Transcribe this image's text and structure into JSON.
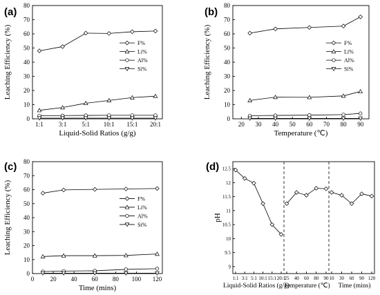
{
  "chart_data": [
    {
      "id": "a",
      "type": "line",
      "panel_label": "(a)",
      "xlabel": "Liquid-Solid Ratios (g/g)",
      "ylabel": "Leaching Efficiency (%)",
      "categories": [
        "1:1",
        "3:1",
        "5:1",
        "10:1",
        "15:1",
        "20:1"
      ],
      "ylim": [
        0,
        80
      ],
      "yticks": [
        0,
        10,
        20,
        30,
        40,
        50,
        60,
        70,
        80
      ],
      "legend_position": "right",
      "series": [
        {
          "name": "F%",
          "marker": "diamond",
          "values": [
            48,
            51,
            60.5,
            60.3,
            61.5,
            62
          ]
        },
        {
          "name": "Li%",
          "marker": "triangle-up",
          "values": [
            6,
            8,
            11,
            13,
            15,
            16
          ]
        },
        {
          "name": "Al%",
          "marker": "circle",
          "values": [
            2.2,
            2.3,
            2.4,
            2.5,
            2.5,
            2.5
          ]
        },
        {
          "name": "Si%",
          "marker": "triangle-down",
          "values": [
            0.5,
            0.5,
            0.5,
            0.5,
            0.5,
            0.5
          ]
        }
      ]
    },
    {
      "id": "b",
      "type": "line",
      "panel_label": "(b)",
      "xlabel": "Temperature (℃)",
      "ylabel": "Leaching Efficiency (%)",
      "xlim": [
        15,
        95
      ],
      "xticks": [
        20,
        30,
        40,
        50,
        60,
        70,
        80,
        90
      ],
      "ylim": [
        0,
        80
      ],
      "yticks": [
        0,
        10,
        20,
        30,
        40,
        50,
        60,
        70,
        80
      ],
      "legend_position": "right",
      "series": [
        {
          "name": "F%",
          "marker": "diamond",
          "x": [
            25,
            40,
            60,
            80,
            90
          ],
          "values": [
            60.5,
            63.5,
            64.5,
            65.5,
            72
          ]
        },
        {
          "name": "Li%",
          "marker": "triangle-up",
          "x": [
            25,
            40,
            60,
            80,
            90
          ],
          "values": [
            13,
            15.3,
            15.2,
            16.2,
            19.3
          ]
        },
        {
          "name": "Al%",
          "marker": "circle",
          "x": [
            25,
            40,
            60,
            80,
            90
          ],
          "values": [
            2.2,
            2.4,
            2.6,
            3,
            3.8
          ]
        },
        {
          "name": "Si%",
          "marker": "triangle-down",
          "x": [
            25,
            40,
            60,
            80,
            90
          ],
          "values": [
            0.3,
            0.3,
            0.3,
            0.3,
            0.3
          ]
        }
      ]
    },
    {
      "id": "c",
      "type": "line",
      "panel_label": "(c)",
      "xlabel": "Time (mins)",
      "ylabel": "Leaching Efficiency (%)",
      "xlim": [
        0,
        125
      ],
      "xticks": [
        0,
        20,
        40,
        60,
        80,
        100,
        120
      ],
      "ylim": [
        0,
        80
      ],
      "yticks": [
        0,
        10,
        20,
        30,
        40,
        50,
        60,
        70,
        80
      ],
      "legend_position": "right",
      "series": [
        {
          "name": "F%",
          "marker": "diamond",
          "x": [
            10,
            30,
            60,
            90,
            120
          ],
          "values": [
            57.5,
            59.8,
            60.2,
            60.5,
            60.8
          ]
        },
        {
          "name": "Li%",
          "marker": "triangle-up",
          "x": [
            10,
            30,
            60,
            90,
            120
          ],
          "values": [
            12.2,
            12.8,
            12.8,
            13,
            14
          ]
        },
        {
          "name": "Al%",
          "marker": "circle",
          "x": [
            10,
            30,
            60,
            90,
            120
          ],
          "values": [
            1.5,
            1.8,
            2,
            3,
            3.5
          ]
        },
        {
          "name": "Si%",
          "marker": "triangle-down",
          "x": [
            10,
            30,
            60,
            90,
            120
          ],
          "values": [
            0.3,
            0.3,
            0.3,
            0.3,
            0.3
          ]
        }
      ]
    },
    {
      "id": "d",
      "type": "line",
      "panel_label": "(d)",
      "ylabel": "pH",
      "ylim": [
        8.75,
        12.75
      ],
      "yticks": [
        9.0,
        9.5,
        10.0,
        10.5,
        11.0,
        11.5,
        12.0,
        12.5
      ],
      "groups": [
        {
          "xlabel": "Liquid-Solid Ratios (g/g)",
          "ticks": [
            "1:1",
            "3:1",
            "5:1",
            "10:1",
            "15:1",
            "20:1"
          ],
          "values": [
            12.45,
            12.15,
            11.98,
            11.25,
            10.5,
            10.15
          ]
        },
        {
          "xlabel": "Temperature (℃)",
          "ticks": [
            "25",
            "40",
            "60",
            "80",
            "90"
          ],
          "values": [
            11.25,
            11.65,
            11.55,
            11.8,
            11.78
          ]
        },
        {
          "xlabel": "Time (mins)",
          "ticks": [
            "10",
            "30",
            "60",
            "90",
            "120"
          ],
          "values": [
            11.65,
            11.55,
            11.25,
            11.6,
            11.52
          ]
        }
      ]
    }
  ]
}
